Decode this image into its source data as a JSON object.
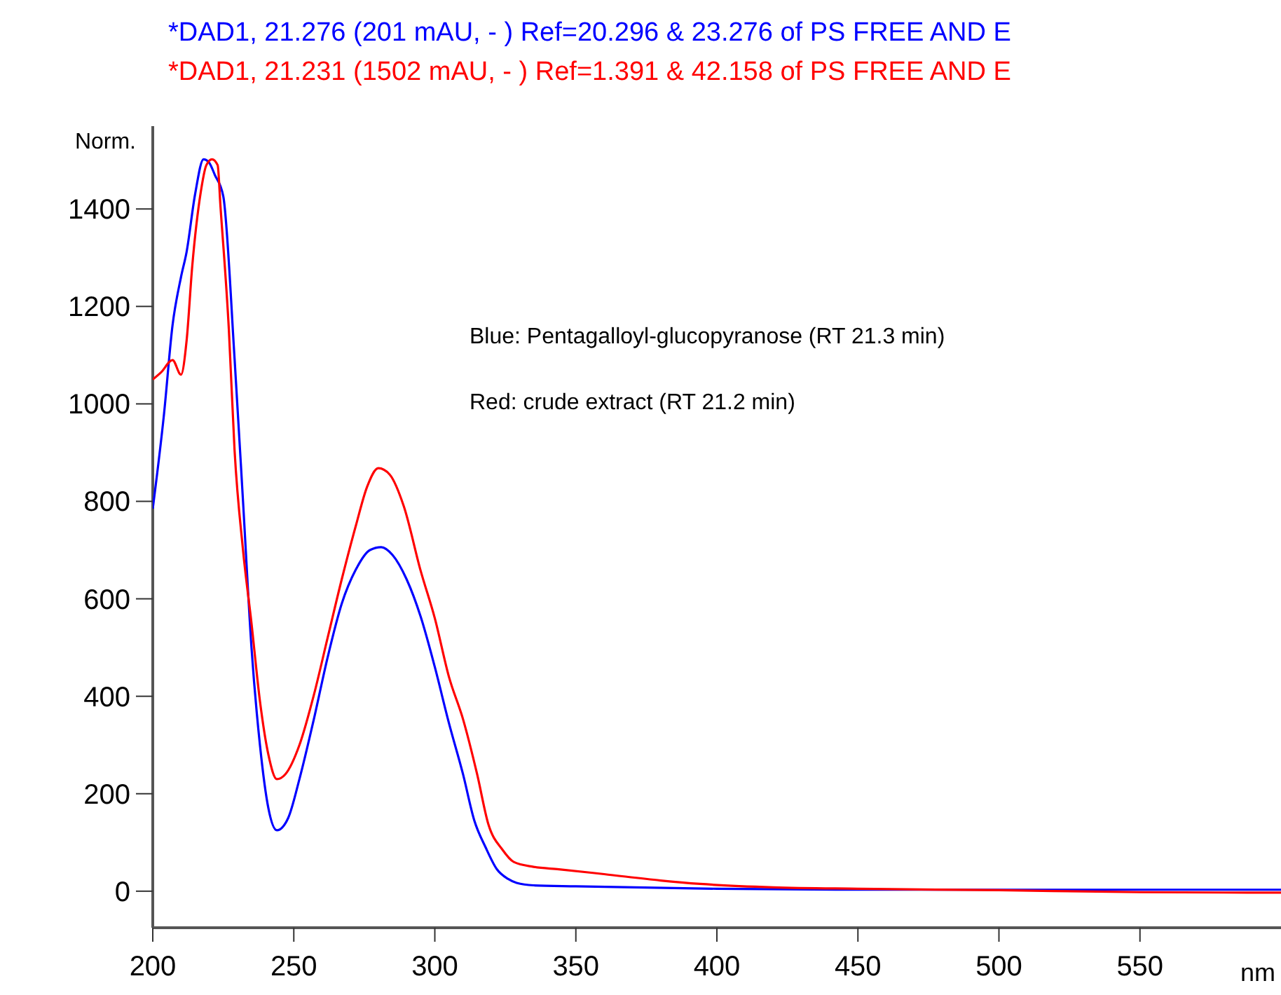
{
  "chart_data": {
    "type": "line",
    "xlabel": "nm",
    "ylabel": "Norm.",
    "legend": "top",
    "grid": false,
    "marker": "none",
    "line_style": "solid",
    "xlim": [
      200,
      600
    ],
    "xticks": [
      200,
      250,
      300,
      350,
      400,
      450,
      500,
      550
    ],
    "ylim": [
      -75,
      1570
    ],
    "yticks": [
      0,
      200,
      400,
      600,
      800,
      1000,
      1200,
      1400
    ],
    "annotations": [
      "Blue: Pentagalloyl-glucopyranose (RT 21.3 min)",
      "Red: crude extract (RT 21.2 min)"
    ],
    "series": [
      {
        "name": "*DAD1, 21.276 (201 mAU, - ) Ref=20.296 & 23.276 of PS FREE AND E",
        "color": "#0000ff",
        "x": [
          200,
          204,
          207,
          210,
          212,
          215,
          218,
          220,
          222,
          225,
          229,
          232,
          235,
          238,
          241,
          244,
          248,
          252,
          257,
          262,
          267,
          272,
          277,
          281,
          285,
          290,
          295,
          300,
          305,
          310,
          314,
          318,
          322,
          326,
          329,
          335,
          350,
          400,
          450,
          500,
          550,
          600
        ],
        "values": [
          785,
          980,
          1161,
          1260,
          1312,
          1430,
          1502,
          1495,
          1470,
          1426,
          1093,
          800,
          500,
          300,
          170,
          125,
          150,
          230,
          350,
          480,
          590,
          660,
          700,
          706,
          690,
          640,
          563,
          460,
          345,
          240,
          145,
          90,
          45,
          25,
          17,
          12,
          10,
          5,
          3,
          3,
          3,
          3
        ]
      },
      {
        "name": "*DAD1, 21.231 (1502 mAU, - ) Ref=1.391 & 42.158 of PS FREE AND E",
        "color": "#ff0000",
        "x": [
          200,
          203,
          207,
          210,
          212,
          214,
          217,
          219,
          221,
          223,
          224,
          227,
          229,
          232,
          235,
          238,
          241,
          244,
          247,
          252,
          257,
          262,
          267,
          272,
          276,
          280,
          284,
          289,
          295,
          300,
          305,
          310,
          315,
          319,
          324,
          328,
          335,
          344,
          360,
          380,
          394,
          420,
          450,
          500,
          550,
          600
        ],
        "values": [
          1050,
          1065,
          1090,
          1060,
          1130,
          1283,
          1434,
          1490,
          1502,
          1490,
          1406,
          1150,
          905,
          700,
          550,
          390,
          280,
          230,
          240,
          300,
          400,
          520,
          640,
          750,
          830,
          868,
          855,
          790,
          657,
          560,
          440,
          353,
          240,
          137,
          85,
          60,
          50,
          45,
          35,
          22,
          15,
          8,
          5,
          2,
          -2,
          -3
        ]
      }
    ]
  }
}
